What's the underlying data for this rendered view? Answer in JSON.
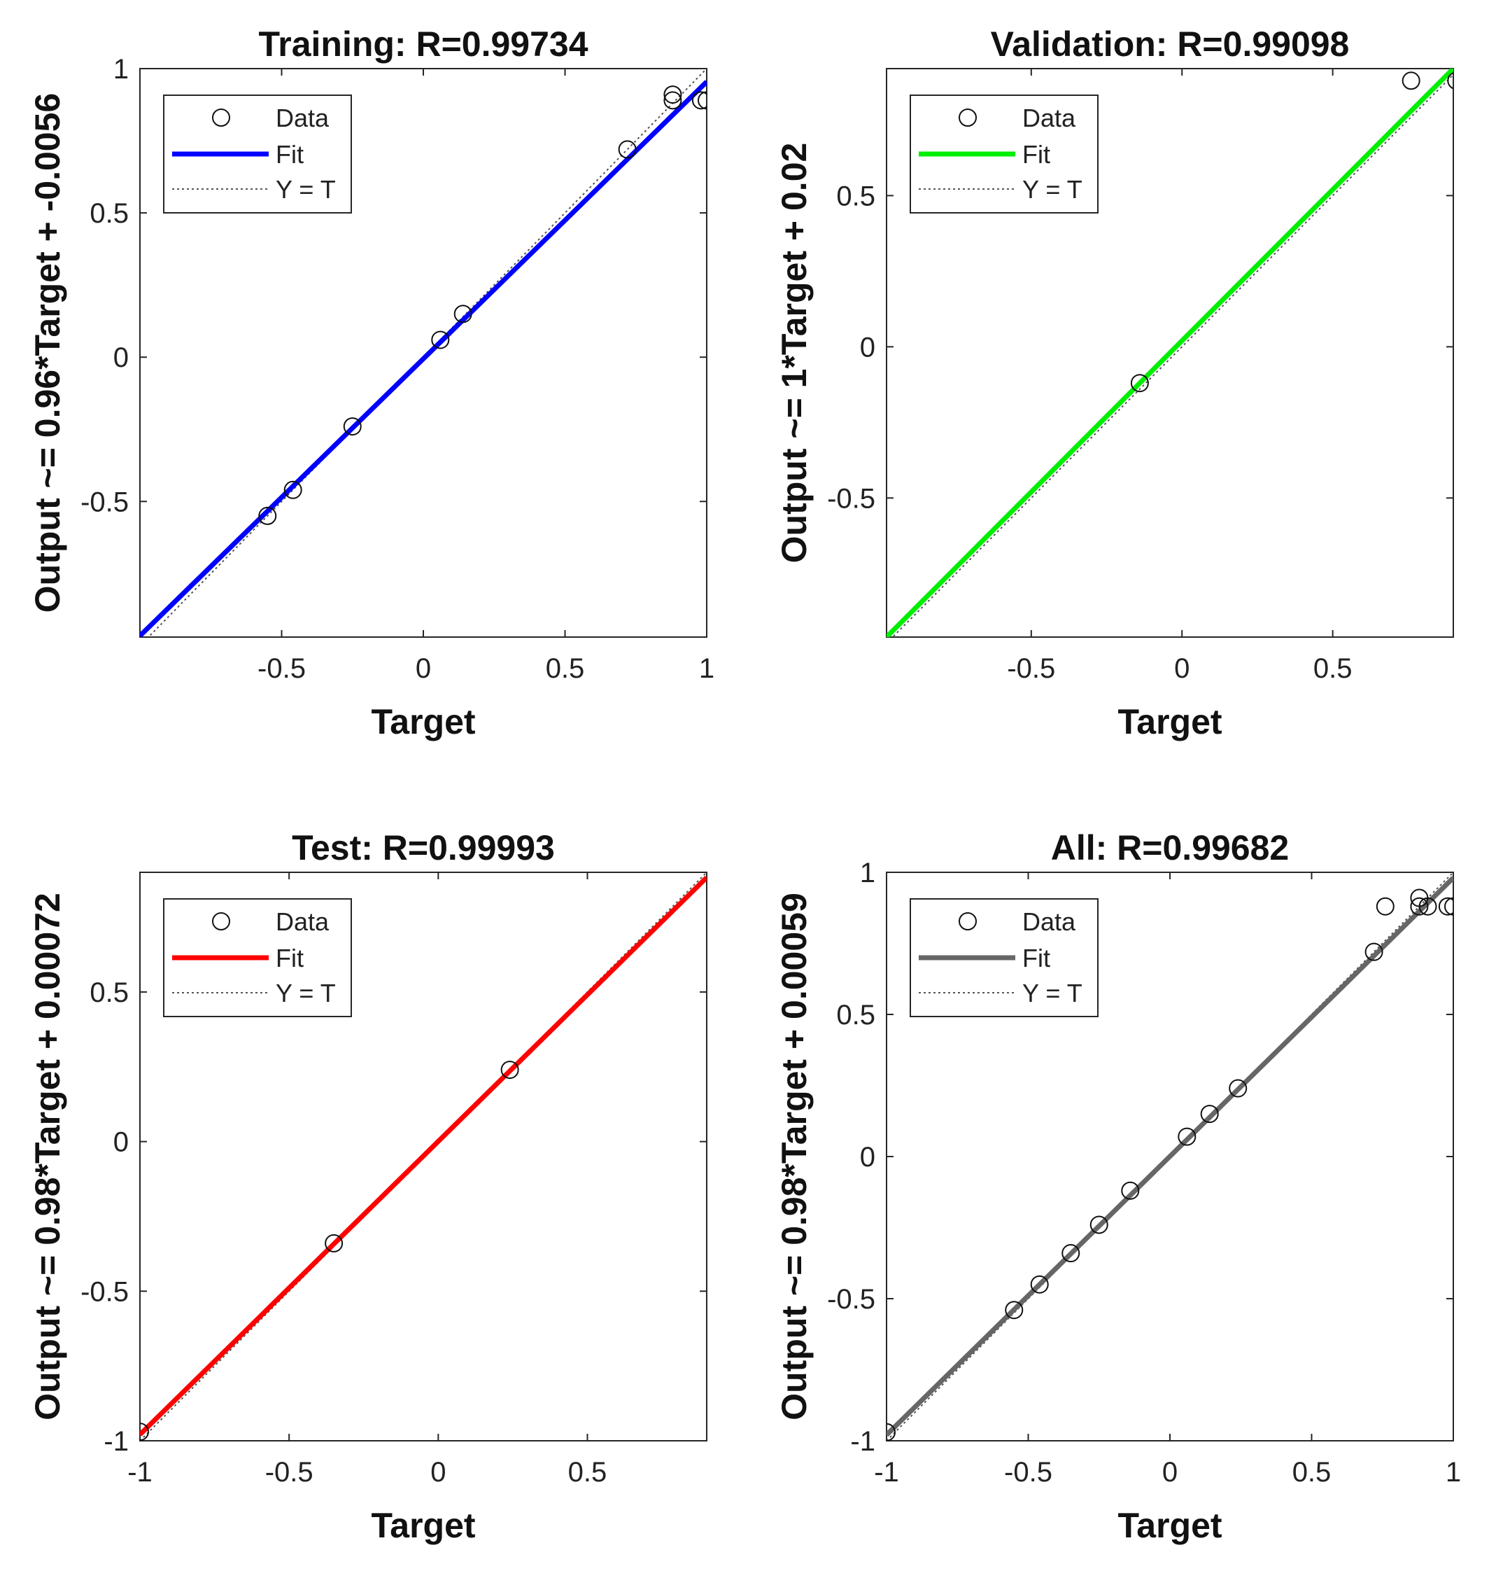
{
  "chart_data": [
    {
      "type": "scatter",
      "title": "Training: R=0.99734",
      "xlabel": "Target",
      "ylabel": "Output ~= 0.96*Target + -0.0056",
      "xlim": [
        -1,
        1
      ],
      "ylim": [
        -0.97,
        1
      ],
      "xticks": [
        "-0.5",
        "0",
        "0.5",
        "1"
      ],
      "xtick_values": [
        -0.5,
        0,
        0.5,
        1
      ],
      "yticks": [
        "-0.5",
        "0",
        "0.5",
        "1"
      ],
      "ytick_values": [
        -0.5,
        0,
        0.5,
        1
      ],
      "fit": {
        "slope": 0.96,
        "intercept": -0.0056
      },
      "fit_color": "#0000ff",
      "legend": [
        "Data",
        "Fit",
        "Y = T"
      ],
      "legend_position": "top-left",
      "points": [
        {
          "x": -0.55,
          "y": -0.55
        },
        {
          "x": -0.46,
          "y": -0.46
        },
        {
          "x": -0.25,
          "y": -0.24
        },
        {
          "x": 0.06,
          "y": 0.06
        },
        {
          "x": 0.14,
          "y": 0.15
        },
        {
          "x": 0.72,
          "y": 0.72
        },
        {
          "x": 0.88,
          "y": 0.91
        },
        {
          "x": 0.88,
          "y": 0.89
        },
        {
          "x": 0.98,
          "y": 0.89
        },
        {
          "x": 1.0,
          "y": 0.89
        }
      ]
    },
    {
      "type": "scatter",
      "title": "Validation: R=0.99098",
      "xlabel": "Target",
      "ylabel": "Output ~= 1*Target + 0.02",
      "xlim": [
        -0.98,
        0.9
      ],
      "ylim": [
        -0.96,
        0.92
      ],
      "xticks": [
        "-0.5",
        "0",
        "0.5"
      ],
      "xtick_values": [
        -0.5,
        0,
        0.5
      ],
      "yticks": [
        "-0.5",
        "0",
        "0.5"
      ],
      "ytick_values": [
        -0.5,
        0,
        0.5
      ],
      "fit": {
        "slope": 1,
        "intercept": 0.02
      },
      "fit_color": "#00ee00",
      "legend": [
        "Data",
        "Fit",
        "Y = T"
      ],
      "legend_position": "top-left",
      "points": [
        {
          "x": -0.14,
          "y": -0.12
        },
        {
          "x": 0.76,
          "y": 0.88
        },
        {
          "x": 0.91,
          "y": 0.88
        }
      ]
    },
    {
      "type": "scatter",
      "title": "Test: R=0.99993",
      "xlabel": "Target",
      "ylabel": "Output ~= 0.98*Target + 0.00072",
      "xlim": [
        -1,
        0.9
      ],
      "ylim": [
        -1,
        0.9
      ],
      "xticks": [
        "-1",
        "-0.5",
        "0",
        "0.5"
      ],
      "xtick_values": [
        -1,
        -0.5,
        0,
        0.5
      ],
      "yticks": [
        "-1",
        "-0.5",
        "0",
        "0.5"
      ],
      "ytick_values": [
        -1,
        -0.5,
        0,
        0.5
      ],
      "fit": {
        "slope": 0.98,
        "intercept": 0.00072
      },
      "fit_color": "#ff0000",
      "legend": [
        "Data",
        "Fit",
        "Y = T"
      ],
      "legend_position": "top-left",
      "points": [
        {
          "x": -1.0,
          "y": -0.97
        },
        {
          "x": -0.35,
          "y": -0.34
        },
        {
          "x": 0.24,
          "y": 0.24
        }
      ]
    },
    {
      "type": "scatter",
      "title": "All: R=0.99682",
      "xlabel": "Target",
      "ylabel": "Output ~= 0.98*Target + 0.00059",
      "xlim": [
        -1,
        1
      ],
      "ylim": [
        -1,
        1
      ],
      "xticks": [
        "-1",
        "-0.5",
        "0",
        "0.5",
        "1"
      ],
      "xtick_values": [
        -1,
        -0.5,
        0,
        0.5,
        1
      ],
      "yticks": [
        "-1",
        "-0.5",
        "0",
        "0.5",
        "1"
      ],
      "ytick_values": [
        -1,
        -0.5,
        0,
        0.5,
        1
      ],
      "fit": {
        "slope": 0.98,
        "intercept": 0.00059
      },
      "fit_color": "#666666",
      "legend": [
        "Data",
        "Fit",
        "Y = T"
      ],
      "legend_position": "top-left",
      "points": [
        {
          "x": -1.0,
          "y": -0.97
        },
        {
          "x": -0.55,
          "y": -0.54
        },
        {
          "x": -0.46,
          "y": -0.45
        },
        {
          "x": -0.35,
          "y": -0.34
        },
        {
          "x": -0.25,
          "y": -0.24
        },
        {
          "x": -0.14,
          "y": -0.12
        },
        {
          "x": 0.06,
          "y": 0.07
        },
        {
          "x": 0.14,
          "y": 0.15
        },
        {
          "x": 0.24,
          "y": 0.24
        },
        {
          "x": 0.72,
          "y": 0.72
        },
        {
          "x": 0.76,
          "y": 0.88
        },
        {
          "x": 0.88,
          "y": 0.91
        },
        {
          "x": 0.88,
          "y": 0.88
        },
        {
          "x": 0.91,
          "y": 0.88
        },
        {
          "x": 0.98,
          "y": 0.88
        },
        {
          "x": 1.0,
          "y": 0.88
        }
      ]
    }
  ]
}
